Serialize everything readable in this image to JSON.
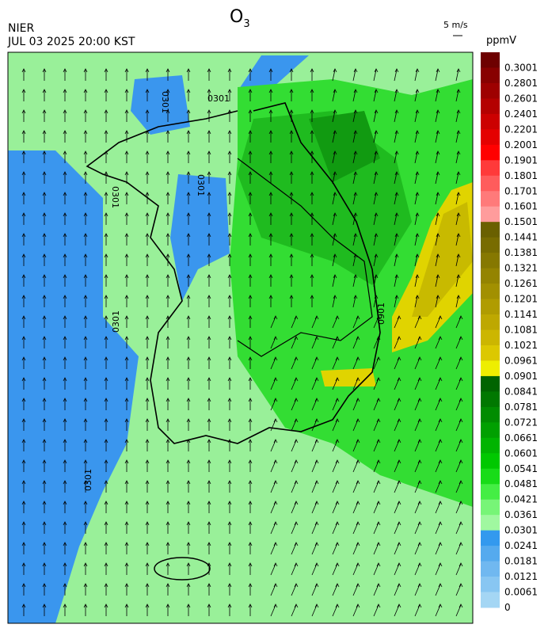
{
  "header": {
    "title": {
      "base": "O",
      "subscript": "3"
    },
    "agency": "NIER",
    "datetime": "JUL 03 2025 20:00 KST",
    "wind_scale": "5 m/s"
  },
  "colorbar": {
    "unit": "ppmV",
    "labels": [
      "0.3001",
      "0.2801",
      "0.2601",
      "0.2401",
      "0.2201",
      "0.2001",
      "0.1901",
      "0.1801",
      "0.1701",
      "0.1601",
      "0.1501",
      "0.1441",
      "0.1381",
      "0.1321",
      "0.1261",
      "0.1201",
      "0.1141",
      "0.1081",
      "0.1021",
      "0.0961",
      "0.0901",
      "0.0841",
      "0.0781",
      "0.0721",
      "0.0661",
      "0.0601",
      "0.0541",
      "0.0481",
      "0.0421",
      "0.0361",
      "0.0301",
      "0.0241",
      "0.0181",
      "0.0121",
      "0.0061",
      "0"
    ],
    "colors": [
      "#6e0000",
      "#880000",
      "#9e0000",
      "#b40000",
      "#cc0000",
      "#e40000",
      "#ff0000",
      "#ff3a3a",
      "#ff5c5c",
      "#ff7a7a",
      "#ff9c9c",
      "#6a6000",
      "#786c00",
      "#867800",
      "#948400",
      "#a29000",
      "#b09c00",
      "#bea800",
      "#ccb600",
      "#dcc800",
      "#eeee00",
      "#006400",
      "#007800",
      "#008c00",
      "#00a000",
      "#00b400",
      "#00c800",
      "#18dc18",
      "#44ee44",
      "#77f577",
      "#a0f8a0",
      "#3399ee",
      "#55aaee",
      "#70b8f0",
      "#88c6f2",
      "#a4d6f4"
    ]
  },
  "map": {
    "contour_labels": [
      "0301",
      "0301",
      "0301",
      "0301",
      "0301",
      "0301",
      "0901"
    ]
  }
}
